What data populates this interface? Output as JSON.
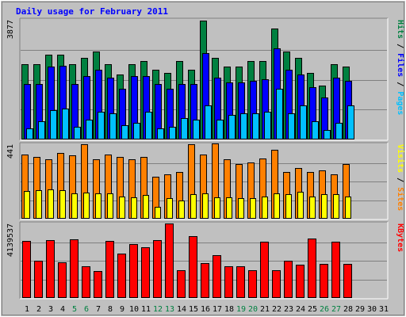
{
  "chart_data": [
    {
      "type": "bar",
      "title": "Daily usage for February 2011",
      "y_max_label": "3877",
      "right_labels": [
        {
          "text": "Pages",
          "color": "#00c0ff"
        },
        {
          "text": "Files",
          "color": "#0000ff"
        },
        {
          "text": "Hits",
          "color": "#008040"
        }
      ],
      "ylim": [
        0,
        3877
      ],
      "categories": [
        "1",
        "2",
        "3",
        "4",
        "5",
        "6",
        "7",
        "8",
        "9",
        "10",
        "11",
        "12",
        "13",
        "14",
        "15",
        "16",
        "17",
        "18",
        "19",
        "20",
        "21",
        "22",
        "23",
        "24",
        "25",
        "26",
        "27",
        "28",
        "29",
        "30",
        "31"
      ],
      "series": [
        {
          "name": "Hits",
          "color": "#008040",
          "values": [
            2450,
            2450,
            2750,
            2750,
            2450,
            2650,
            2850,
            2450,
            2100,
            2450,
            2550,
            2250,
            2150,
            2550,
            2250,
            3850,
            2650,
            2350,
            2350,
            2550,
            2550,
            3600,
            2850,
            2650,
            2150,
            1750,
            2450,
            2350,
            0,
            0,
            0
          ]
        },
        {
          "name": "Files",
          "color": "#0000ff",
          "values": [
            1800,
            1800,
            2350,
            2400,
            1800,
            2050,
            2250,
            2000,
            1650,
            2050,
            2050,
            1800,
            1650,
            1800,
            1800,
            2800,
            2000,
            1850,
            1850,
            1900,
            1950,
            2950,
            2250,
            2100,
            1700,
            1350,
            2000,
            1900,
            0,
            0,
            0
          ]
        },
        {
          "name": "Pages",
          "color": "#00c0ff",
          "values": [
            350,
            600,
            950,
            1000,
            400,
            650,
            900,
            850,
            450,
            550,
            900,
            350,
            400,
            700,
            650,
            1100,
            650,
            800,
            850,
            850,
            900,
            1650,
            850,
            1100,
            600,
            300,
            550,
            1100,
            0,
            0,
            0
          ]
        }
      ]
    },
    {
      "type": "bar",
      "y_max_label": "441",
      "right_labels": [
        {
          "text": "Sites",
          "color": "#ff8000"
        },
        {
          "text": "Visits",
          "color": "#ffff00"
        }
      ],
      "ylim": [
        0,
        441
      ],
      "categories": [
        "1",
        "2",
        "3",
        "4",
        "5",
        "6",
        "7",
        "8",
        "9",
        "10",
        "11",
        "12",
        "13",
        "14",
        "15",
        "16",
        "17",
        "18",
        "19",
        "20",
        "21",
        "22",
        "23",
        "24",
        "25",
        "26",
        "27",
        "28",
        "29",
        "30",
        "31"
      ],
      "series": [
        {
          "name": "Sites",
          "color": "#ff8000",
          "values": [
            380,
            365,
            350,
            390,
            375,
            440,
            350,
            380,
            365,
            350,
            365,
            250,
            265,
            275,
            440,
            380,
            445,
            350,
            325,
            335,
            355,
            410,
            275,
            300,
            275,
            285,
            265,
            325,
            0,
            0,
            0
          ]
        },
        {
          "name": "Visits",
          "color": "#ffff00",
          "values": [
            165,
            170,
            175,
            170,
            150,
            155,
            150,
            150,
            130,
            125,
            140,
            70,
            120,
            110,
            145,
            150,
            125,
            125,
            120,
            120,
            130,
            150,
            145,
            160,
            130,
            145,
            145,
            130,
            0,
            0,
            0
          ]
        }
      ]
    },
    {
      "type": "bar",
      "y_max_label": "4139537",
      "right_labels": [
        {
          "text": "KBytes",
          "color": "#ff0000"
        }
      ],
      "ylim": [
        0,
        4139537
      ],
      "categories": [
        "1",
        "2",
        "3",
        "4",
        "5",
        "6",
        "7",
        "8",
        "9",
        "10",
        "11",
        "12",
        "13",
        "14",
        "15",
        "16",
        "17",
        "18",
        "19",
        "20",
        "21",
        "22",
        "23",
        "24",
        "25",
        "26",
        "27",
        "28",
        "29",
        "30",
        "31"
      ],
      "weekend_days": [
        "5",
        "6",
        "12",
        "13",
        "19",
        "20",
        "26",
        "27"
      ],
      "series": [
        {
          "name": "KBytes",
          "color": "#ff0000",
          "values": [
            3170000,
            2050000,
            3230000,
            2000000,
            3280000,
            1750000,
            1500000,
            3170000,
            2480000,
            3000000,
            2830000,
            3200000,
            4140000,
            1560000,
            3430000,
            1950000,
            2360000,
            1750000,
            1780000,
            1560000,
            3130000,
            1560000,
            2090000,
            1870000,
            3300000,
            1900000,
            3130000,
            1900000,
            0,
            0,
            0
          ]
        }
      ]
    }
  ]
}
